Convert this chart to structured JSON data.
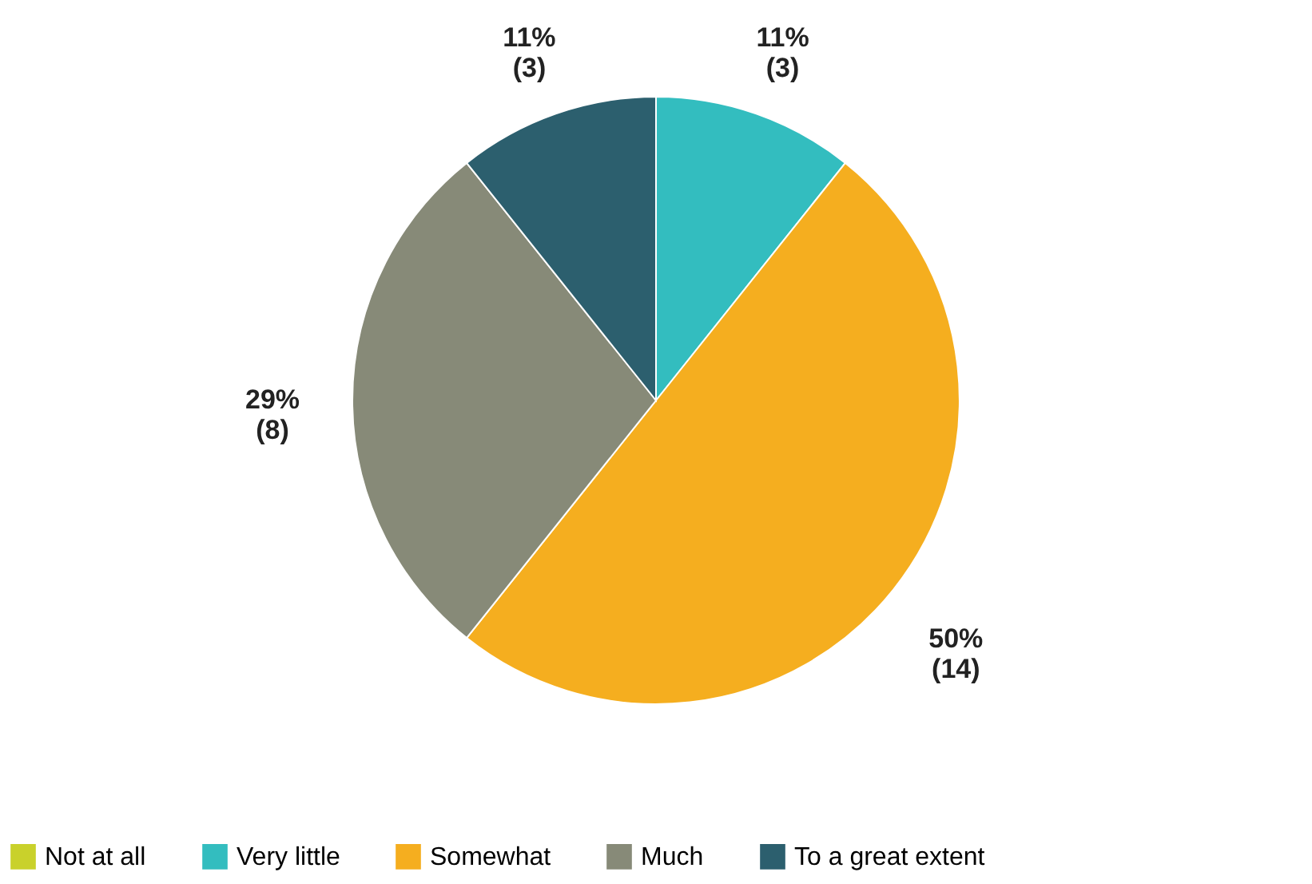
{
  "chart_data": {
    "type": "pie",
    "categories": [
      "Not at all",
      "Very little",
      "Somewhat",
      "Much",
      "To a great extent"
    ],
    "values": [
      0,
      3,
      14,
      8,
      3
    ],
    "colors": [
      "#c9d12b",
      "#33bdbf",
      "#f5ae1f",
      "#878a78",
      "#2c5f6e"
    ],
    "value_labels": [
      null,
      "11%\n(3)",
      "50%\n(14)",
      "29%\n(8)",
      "11%\n(3)"
    ],
    "legend": "bottom"
  }
}
